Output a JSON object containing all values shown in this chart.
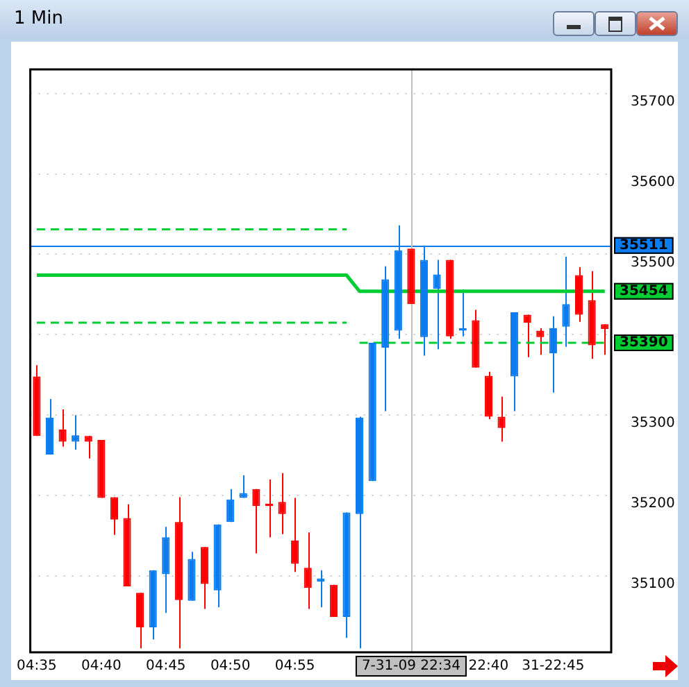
{
  "chart_data": {
    "type": "candlestick",
    "title": "1 Min",
    "categories": [
      "04:35",
      null,
      null,
      null,
      null,
      "04:40",
      null,
      null,
      null,
      null,
      "04:45",
      null,
      null,
      null,
      null,
      "04:50",
      null,
      null,
      null,
      null,
      "04:55",
      null,
      null,
      null,
      null,
      null,
      null,
      null,
      null,
      "7-31-09 22:34",
      null,
      null,
      null,
      null,
      null,
      "22:40",
      null,
      null,
      null,
      null,
      "31-22:45",
      null,
      null,
      null,
      null
    ],
    "series": [
      {
        "ohlc": [
          [
            35348,
            35362,
            35274,
            35274
          ],
          [
            35251,
            35320,
            35251,
            35297
          ],
          [
            35282,
            35307,
            35261,
            35267
          ],
          [
            35267,
            35300,
            35257,
            35275
          ],
          [
            35274,
            35274,
            35246,
            35267
          ],
          [
            35269,
            35269,
            35197,
            35197
          ],
          [
            35198,
            35198,
            35151,
            35170
          ],
          [
            35172,
            35189,
            35087,
            35087
          ],
          [
            35079,
            35079,
            35010,
            35036
          ],
          [
            35036,
            35107,
            35021,
            35107
          ],
          [
            35102,
            35161,
            35054,
            35148
          ],
          [
            35167,
            35198,
            35010,
            35070
          ],
          [
            35069,
            35130,
            35069,
            35121
          ],
          [
            35136,
            35136,
            35059,
            35090
          ],
          [
            35082,
            35164,
            35061,
            35164
          ],
          [
            35167,
            35208,
            35167,
            35195
          ],
          [
            35197,
            35225,
            35197,
            35203
          ],
          [
            35208,
            35208,
            35128,
            35187
          ],
          [
            35190,
            35220,
            35148,
            35187
          ],
          [
            35192,
            35228,
            35152,
            35177
          ],
          [
            35144,
            35197,
            35105,
            35115
          ],
          [
            35110,
            35154,
            35059,
            35085
          ],
          [
            35093,
            35107,
            35061,
            35097
          ],
          [
            35089,
            35089,
            35049,
            35049
          ],
          [
            35049,
            35179,
            35023,
            35179
          ],
          [
            35177,
            35298,
            35010,
            35297
          ],
          [
            35218,
            35390,
            35218,
            35390
          ],
          [
            35384,
            35485,
            35305,
            35469
          ],
          [
            35405,
            35536,
            35395,
            35505
          ],
          [
            35507,
            35507,
            35438,
            35438
          ],
          [
            35397,
            35511,
            35374,
            35493
          ],
          [
            35457,
            35493,
            35382,
            35475
          ],
          [
            35493,
            35493,
            35395,
            35398
          ],
          [
            35405,
            35456,
            35398,
            35408
          ],
          [
            35418,
            35431,
            35359,
            35359
          ],
          [
            35349,
            35354,
            35295,
            35298
          ],
          [
            35298,
            35323,
            35267,
            35284
          ],
          [
            35348,
            35428,
            35305,
            35428
          ],
          [
            35425,
            35425,
            35372,
            35415
          ],
          [
            35405,
            35408,
            35375,
            35397
          ],
          [
            35377,
            35423,
            35328,
            35408
          ],
          [
            35410,
            35497,
            35385,
            35438
          ],
          [
            35474,
            35484,
            35416,
            35425
          ],
          [
            35443,
            35479,
            35370,
            35387
          ],
          [
            35413,
            35413,
            35375,
            35407
          ]
        ],
        "colors": [
          "#ff0000",
          "#0a7cf0",
          "#ff0000",
          "#0a7cf0",
          "#ff0000",
          "#ff0000",
          "#ff0000",
          "#ff0000",
          "#ff0000",
          "#0a7cf0",
          "#0a7cf0",
          "#ff0000",
          "#0a7cf0",
          "#ff0000",
          "#0a7cf0",
          "#0a7cf0",
          "#0a7cf0",
          "#ff0000",
          "#ff0000",
          "#ff0000",
          "#ff0000",
          "#ff0000",
          "#0a7cf0",
          "#ff0000",
          "#0a7cf0",
          "#0a7cf0",
          "#0a7cf0",
          "#0a7cf0",
          "#0a7cf0",
          "#ff0000",
          "#0a7cf0",
          "#0a7cf0",
          "#ff0000",
          "#0a7cf0",
          "#ff0000",
          "#ff0000",
          "#ff0000",
          "#0a7cf0",
          "#ff0000",
          "#ff0000",
          "#0a7cf0",
          "#0a7cf0",
          "#ff0000",
          "#ff0000",
          "#ff0000"
        ]
      },
      {
        "type": "line",
        "color": "#00cc33",
        "line_style": "dashed",
        "values": [
          35531,
          35531,
          35531,
          35531,
          35531,
          35531,
          35531,
          35531,
          35531,
          35531,
          35531,
          35531,
          35531,
          35531,
          35531,
          35531,
          35531,
          35531,
          35531,
          35531,
          35531,
          35531,
          35531,
          35531,
          35531,
          null,
          null,
          null,
          null,
          null,
          null,
          null,
          null,
          null,
          null,
          null,
          null,
          null,
          null,
          null,
          null,
          null,
          null,
          null,
          null
        ]
      },
      {
        "type": "line",
        "color": "#00cc33",
        "line_style": "solid",
        "values": [
          35474,
          35474,
          35474,
          35474,
          35474,
          35474,
          35474,
          35474,
          35474,
          35474,
          35474,
          35474,
          35474,
          35474,
          35474,
          35474,
          35474,
          35474,
          35474,
          35474,
          35474,
          35474,
          35474,
          35474,
          35474,
          35454,
          35454,
          35454,
          35454,
          35454,
          35454,
          35454,
          35454,
          35454,
          35454,
          35454,
          35454,
          35454,
          35454,
          35454,
          35454,
          35454,
          35454,
          35454,
          35454
        ],
        "value_labels": [
          null,
          null,
          null,
          null,
          null,
          null,
          null,
          null,
          null,
          null,
          null,
          null,
          null,
          null,
          null,
          null,
          null,
          null,
          null,
          null,
          null,
          null,
          null,
          null,
          null,
          null,
          null,
          null,
          null,
          null,
          null,
          null,
          null,
          null,
          null,
          null,
          null,
          null,
          null,
          null,
          null,
          null,
          null,
          null,
          "35454"
        ]
      },
      {
        "type": "line",
        "color": "#00cc33",
        "line_style": "dashed",
        "values": [
          35415,
          35415,
          35415,
          35415,
          35415,
          35415,
          35415,
          35415,
          35415,
          35415,
          35415,
          35415,
          35415,
          35415,
          35415,
          35415,
          35415,
          35415,
          35415,
          35415,
          35415,
          35415,
          35415,
          35415,
          35415,
          null,
          null,
          null,
          null,
          null,
          null,
          null,
          null,
          null,
          null,
          null,
          null,
          null,
          null,
          null,
          null,
          null,
          null,
          null,
          null
        ]
      },
      {
        "type": "line",
        "color": "#00cc33",
        "line_style": "dashed",
        "values": [
          null,
          null,
          null,
          null,
          null,
          null,
          null,
          null,
          null,
          null,
          null,
          null,
          null,
          null,
          null,
          null,
          null,
          null,
          null,
          null,
          null,
          null,
          null,
          null,
          null,
          35390,
          35390,
          35390,
          35390,
          35390,
          35390,
          35390,
          35390,
          35390,
          35390,
          35390,
          35390,
          35390,
          35390,
          35390,
          35390,
          35390,
          35390,
          35390,
          35390
        ],
        "value_labels": [
          null,
          null,
          null,
          null,
          null,
          null,
          null,
          null,
          null,
          null,
          null,
          null,
          null,
          null,
          null,
          null,
          null,
          null,
          null,
          null,
          null,
          null,
          null,
          null,
          null,
          null,
          null,
          null,
          null,
          null,
          null,
          null,
          null,
          null,
          null,
          null,
          null,
          null,
          null,
          null,
          null,
          null,
          null,
          null,
          "35390"
        ]
      }
    ],
    "ylim": [
      35005,
      35730
    ],
    "yticks": [
      35100,
      35200,
      35300,
      {
        "value": 35400,
        "label": null
      },
      35500,
      35600,
      35700
    ],
    "ref_lines": [
      {
        "axis": "y",
        "value": 35511,
        "label": "35511",
        "color": "#0a7cf0"
      },
      {
        "axis": "x",
        "value": "7-31-09 22:34",
        "color": "#c0c0c0"
      }
    ],
    "grid": "y",
    "legend": false,
    "marker": "none"
  }
}
